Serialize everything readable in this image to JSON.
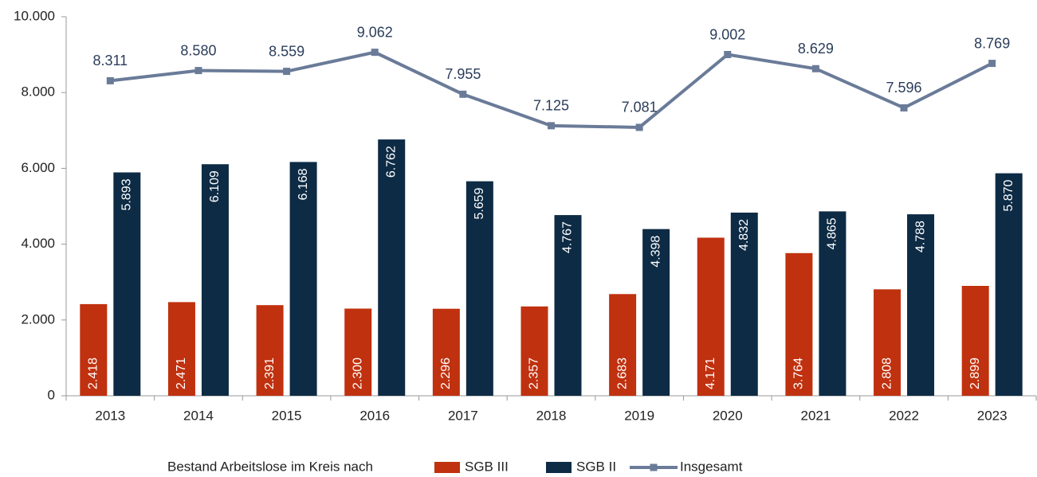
{
  "chart_data": {
    "type": "bar",
    "legend_title": "Bestand Arbeitslose im Kreis nach",
    "categories": [
      "2013",
      "2014",
      "2015",
      "2016",
      "2017",
      "2018",
      "2019",
      "2020",
      "2021",
      "2022",
      "2023"
    ],
    "series": [
      {
        "name": "SGB III",
        "color": "#c0310f",
        "type": "bar",
        "values": [
          2418,
          2471,
          2391,
          2300,
          2296,
          2357,
          2683,
          4171,
          3764,
          2808,
          2899
        ],
        "value_labels": [
          "2.418",
          "2.471",
          "2.391",
          "2.300",
          "2.296",
          "2.357",
          "2.683",
          "4.171",
          "3.764",
          "2.808",
          "2.899"
        ]
      },
      {
        "name": "SGB II",
        "color": "#0d2b45",
        "type": "bar",
        "values": [
          5893,
          6109,
          6168,
          6762,
          5659,
          4767,
          4398,
          4832,
          4865,
          4788,
          5870
        ],
        "value_labels": [
          "5.893",
          "6.109",
          "6.168",
          "6.762",
          "5.659",
          "4.767",
          "4.398",
          "4.832",
          "4.865",
          "4.788",
          "5.870"
        ]
      },
      {
        "name": "Insgesamt",
        "color": "#6a7b98",
        "type": "line",
        "values": [
          8311,
          8580,
          8559,
          9062,
          7955,
          7125,
          7081,
          9002,
          8629,
          7596,
          8769
        ],
        "value_labels": [
          "8.311",
          "8.580",
          "8.559",
          "9.062",
          "7.955",
          "7.125",
          "7.081",
          "9.002",
          "8.629",
          "7.596",
          "8.769"
        ]
      }
    ],
    "ylim": [
      0,
      10000
    ],
    "yticks": [
      0,
      {
        "value": 2000,
        "label": "2.000"
      },
      {
        "value": 4000,
        "label": "4.000"
      },
      {
        "value": 6000,
        "label": "6.000"
      },
      {
        "value": 8000,
        "label": "8.000"
      },
      {
        "value": 10000,
        "label": "10.000"
      }
    ],
    "grid": false,
    "legend": "bottom"
  }
}
